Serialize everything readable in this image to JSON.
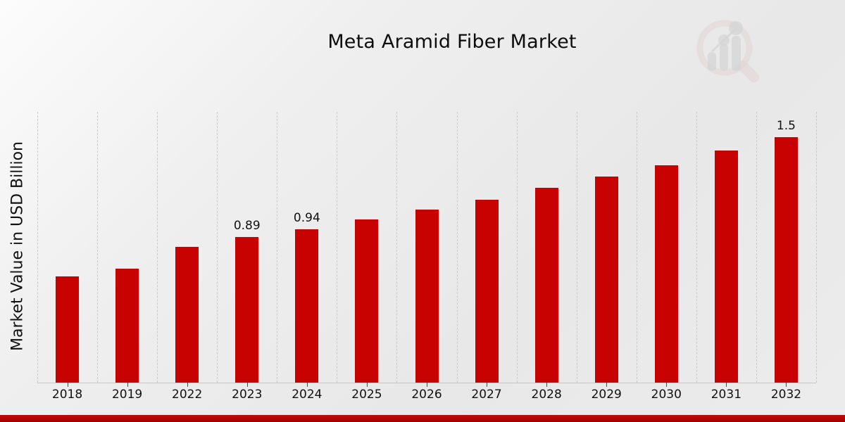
{
  "title": "Meta Aramid Fiber Market",
  "ylabel": "Market Value in USD Billion",
  "logo": {
    "name": "magnifier-bar-chart-watermark"
  },
  "colors": {
    "bar": "#c80101",
    "bar_border": "rgba(255,255,255,0.9)",
    "footer_band_top": "#c70808",
    "footer_band_bottom": "#9c0202",
    "gridline": "#c9c9c9",
    "text": "#111111"
  },
  "chart_data": {
    "type": "bar",
    "title": "Meta Aramid Fiber Market",
    "xlabel": "",
    "ylabel": "Market Value in USD Billion",
    "categories": [
      "2018",
      "2019",
      "2022",
      "2023",
      "2024",
      "2025",
      "2026",
      "2027",
      "2028",
      "2029",
      "2030",
      "2031",
      "2032"
    ],
    "values": [
      0.65,
      0.7,
      0.83,
      0.89,
      0.94,
      1.0,
      1.06,
      1.12,
      1.19,
      1.26,
      1.33,
      1.42,
      1.5
    ],
    "bar_labels": {
      "2023": "0.89",
      "2024": "0.94",
      "2032": "1.5"
    },
    "ylim": [
      0,
      1.65
    ],
    "grid": "vertical-dashed",
    "legend": "none",
    "bar_color": "#c80101"
  }
}
